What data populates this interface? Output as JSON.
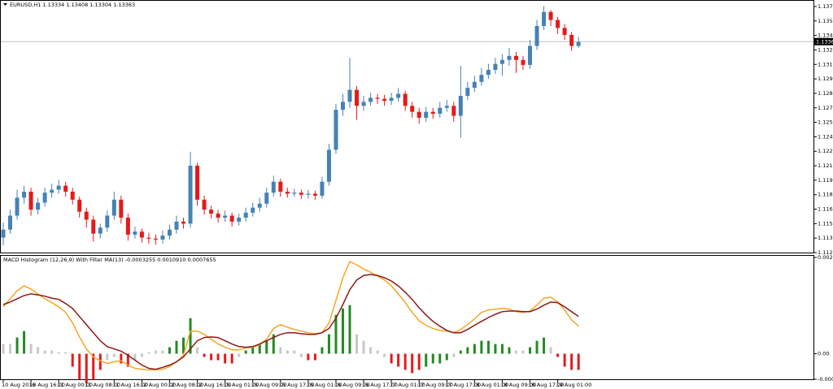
{
  "chart_data": [
    {
      "type": "candlestick",
      "title": "EURUSD,H1 1.13334 1.13408 1.13304 1.13363",
      "categories": [
        "10 Aug 2016",
        null,
        null,
        null,
        "10 Aug 16:00",
        null,
        null,
        null,
        "11 Aug 00:00",
        null,
        null,
        null,
        "11 Aug 08:00",
        null,
        null,
        null,
        "11 Aug 16:00",
        null,
        null,
        null,
        "12 Aug 00:00",
        null,
        null,
        null,
        "12 Aug 08:00",
        null,
        null,
        null,
        "12 Aug 16:00",
        null,
        null,
        null,
        "15 Aug 01:00",
        null,
        null,
        null,
        "15 Aug 09:00",
        null,
        null,
        null,
        "15 Aug 17:00",
        null,
        null,
        null,
        "16 Aug 01:00",
        null,
        null,
        null,
        "16 Aug 09:00",
        null,
        null,
        null,
        "16 Aug 17:00",
        null,
        null,
        null,
        "17 Aug 01:00",
        null,
        null,
        null,
        "17 Aug 09:00",
        null,
        null,
        null,
        "17 Aug 17:00",
        null,
        null,
        null,
        "18 Aug 01:00",
        null,
        null,
        null,
        "18 Aug 09:00",
        null,
        null,
        null,
        "18 Aug 17:00",
        null,
        null,
        null,
        "19 Aug 01:00",
        null,
        null,
        null
      ],
      "open": [
        1.114,
        1.1148,
        1.1162,
        1.118,
        1.1186,
        1.1168,
        1.1175,
        1.1185,
        1.1188,
        1.1192,
        1.1186,
        1.1178,
        1.1166,
        1.1158,
        1.1144,
        1.115,
        1.1162,
        1.1178,
        1.116,
        1.1143,
        1.1146,
        1.114,
        1.1139,
        1.1138,
        1.1142,
        1.1148,
        1.1156,
        1.1154,
        1.1212,
        1.1178,
        1.1168,
        1.1164,
        1.116,
        1.1162,
        1.1156,
        1.116,
        1.1165,
        1.117,
        1.1174,
        1.1185,
        1.1196,
        1.1186,
        1.1184,
        1.1185,
        1.1183,
        1.1184,
        1.1182,
        1.1196,
        1.1228,
        1.1268,
        1.1276,
        1.1288,
        1.1272,
        1.1276,
        1.128,
        1.1279,
        1.1277,
        1.128,
        1.1284,
        1.1272,
        1.1266,
        1.126,
        1.1266,
        1.1264,
        1.127,
        1.1272,
        1.1262,
        1.1282,
        1.129,
        1.1296,
        1.1303,
        1.1308,
        1.1314,
        1.1318,
        1.1322,
        1.1318,
        1.1313,
        1.1332,
        1.1352,
        1.1366,
        1.1358,
        1.135,
        1.1343,
        1.1332
      ],
      "high": [
        1.1155,
        1.1168,
        1.1188,
        1.1192,
        1.119,
        1.118,
        1.119,
        1.1194,
        1.1198,
        1.1196,
        1.119,
        1.1181,
        1.117,
        1.1162,
        1.1154,
        1.1167,
        1.1186,
        1.1182,
        1.1164,
        1.1151,
        1.1149,
        1.1145,
        1.1143,
        1.1147,
        1.1153,
        1.1162,
        1.116,
        1.1226,
        1.1215,
        1.1182,
        1.1172,
        1.1168,
        1.1167,
        1.1165,
        1.1164,
        1.117,
        1.1175,
        1.118,
        1.119,
        1.1202,
        1.1199,
        1.119,
        1.1189,
        1.1188,
        1.1188,
        1.1187,
        1.1201,
        1.1234,
        1.1274,
        1.1284,
        1.132,
        1.1292,
        1.1282,
        1.1285,
        1.1284,
        1.1283,
        1.1285,
        1.129,
        1.1287,
        1.1276,
        1.127,
        1.1271,
        1.127,
        1.1276,
        1.1278,
        1.1276,
        1.1312,
        1.1296,
        1.1302,
        1.131,
        1.1314,
        1.132,
        1.1324,
        1.133,
        1.1326,
        1.1322,
        1.1338,
        1.1358,
        1.1372,
        1.1368,
        1.1361,
        1.1354,
        1.1346,
        1.1341
      ],
      "low": [
        1.1132,
        1.1144,
        1.1158,
        1.1174,
        1.1162,
        1.1163,
        1.1171,
        1.118,
        1.1184,
        1.1181,
        1.1173,
        1.116,
        1.115,
        1.1136,
        1.1139,
        1.1146,
        1.1158,
        1.1154,
        1.1137,
        1.1139,
        1.1135,
        1.1134,
        1.1133,
        1.1134,
        1.1138,
        1.1144,
        1.1149,
        1.115,
        1.1172,
        1.1163,
        1.1159,
        1.1155,
        1.1156,
        1.1151,
        1.1152,
        1.1156,
        1.1161,
        1.1166,
        1.117,
        1.1181,
        1.1181,
        1.118,
        1.1181,
        1.1179,
        1.1179,
        1.1178,
        1.1179,
        1.1192,
        1.1224,
        1.1262,
        1.127,
        1.1258,
        1.1267,
        1.1272,
        1.1274,
        1.1272,
        1.1273,
        1.1276,
        1.1267,
        1.126,
        1.1254,
        1.1256,
        1.1259,
        1.126,
        1.1266,
        1.1256,
        1.124,
        1.1278,
        1.1286,
        1.1292,
        1.1299,
        1.1304,
        1.1302,
        1.1312,
        1.1305,
        1.1308,
        1.1309,
        1.1328,
        1.1348,
        1.1352,
        1.1344,
        1.1338,
        1.1327,
        1.133
      ],
      "close": [
        1.1148,
        1.1162,
        1.118,
        1.1186,
        1.1168,
        1.1175,
        1.1185,
        1.1188,
        1.1192,
        1.1186,
        1.1178,
        1.1166,
        1.1158,
        1.1144,
        1.115,
        1.1162,
        1.1178,
        1.116,
        1.1143,
        1.1146,
        1.114,
        1.1139,
        1.1138,
        1.1142,
        1.1148,
        1.1156,
        1.1154,
        1.1212,
        1.1178,
        1.1168,
        1.1164,
        1.116,
        1.1162,
        1.1156,
        1.116,
        1.1165,
        1.117,
        1.1174,
        1.1185,
        1.1196,
        1.1186,
        1.1184,
        1.1185,
        1.1183,
        1.1184,
        1.1182,
        1.1196,
        1.1228,
        1.1268,
        1.1276,
        1.1288,
        1.1272,
        1.1276,
        1.128,
        1.1279,
        1.1277,
        1.128,
        1.1284,
        1.1272,
        1.1266,
        1.126,
        1.1266,
        1.1264,
        1.127,
        1.1272,
        1.1262,
        1.1282,
        1.129,
        1.1296,
        1.1303,
        1.1308,
        1.1314,
        1.1318,
        1.1322,
        1.1318,
        1.1313,
        1.1332,
        1.1352,
        1.1366,
        1.1358,
        1.135,
        1.1343,
        1.1332,
        1.1336
      ],
      "up_color": "#4682b4",
      "down_color": "#e41a1c",
      "last_price": 1.13363,
      "ylim": [
        1.11242,
        1.1378
      ],
      "yticks": [
        1.13715,
        {
          "value": 1.1357,
          "label": "1.13570"
        },
        1.13425,
        {
          "value": 1.1328,
          "label": "1.13280"
        },
        1.13135,
        {
          "value": 1.1299,
          "label": "1.12990"
        },
        1.12845,
        {
          "value": 1.127,
          "label": "1.12700"
        },
        1.12555,
        {
          "value": 1.1241,
          "label": "1.12410"
        },
        1.12265,
        {
          "value": 1.1212,
          "label": "1.12120"
        },
        1.11975,
        {
          "value": 1.1183,
          "label": "1.11830"
        },
        1.11685,
        {
          "value": 1.1154,
          "label": "1.11540"
        },
        1.11395,
        {
          "value": 1.1125,
          "label": "1.11250"
        }
      ]
    },
    {
      "type": "macd",
      "title": "MACD Histogram (12,26,9) With Filter MA(13) -0.0003255 0.0010910 0.0007655",
      "values": [
        0.0003,
        0.0003,
        0.0005,
        0.0007,
        0.0003,
        0.0002,
        0.0001,
        0.0001,
        5e-05,
        5e-05,
        -0.0004,
        -0.0008,
        -0.0009,
        -0.0008,
        -0.0005,
        -0.0002,
        -0.0001,
        -0.0003,
        -0.0004,
        -0.0002,
        -0.0001,
        5e-05,
        0.0001,
        0.0001,
        0.0002,
        0.0004,
        0.0005,
        0.0011,
        0.0002,
        -0.0001,
        -0.0002,
        -0.0002,
        -0.0003,
        -0.0003,
        -0.0001,
        0.0001,
        0.0002,
        0.0003,
        0.0004,
        0.0006,
        0.0002,
        0.0001,
        0.0001,
        -0.0001,
        -0.0002,
        -0.0002,
        0.0002,
        0.0006,
        0.0012,
        0.0014,
        0.0015,
        0.0006,
        0.0004,
        0.0002,
        0.0001,
        -0.0001,
        -0.0003,
        -0.0004,
        -0.0005,
        -0.0006,
        -0.0005,
        -0.0004,
        -0.0003,
        -0.0003,
        -0.0002,
        -0.0001,
        0.0001,
        0.0002,
        0.0003,
        0.0004,
        0.0004,
        0.0003,
        0.0003,
        0.0002,
        0.0001,
        0.0001,
        0.0002,
        0.0004,
        0.0005,
        0.0002,
        -0.0001,
        -0.0004,
        -0.0005,
        -0.0005
      ],
      "colors": [
        "#c8c8c8",
        "#c8c8c8",
        "#228b22",
        "#228b22",
        "#c8c8c8",
        "#c8c8c8",
        "#c8c8c8",
        "#c8c8c8",
        "#c8c8c8",
        "#c8c8c8",
        "#e41a1c",
        "#e41a1c",
        "#e41a1c",
        "#e41a1c",
        "#e41a1c",
        "#c8c8c8",
        "#c8c8c8",
        "#e41a1c",
        "#e41a1c",
        "#c8c8c8",
        "#c8c8c8",
        "#c8c8c8",
        "#c8c8c8",
        "#c8c8c8",
        "#228b22",
        "#228b22",
        "#228b22",
        "#228b22",
        "#c8c8c8",
        "#e41a1c",
        "#e41a1c",
        "#e41a1c",
        "#e41a1c",
        "#e41a1c",
        "#c8c8c8",
        "#228b22",
        "#228b22",
        "#228b22",
        "#228b22",
        "#228b22",
        "#c8c8c8",
        "#c8c8c8",
        "#c8c8c8",
        "#c8c8c8",
        "#e41a1c",
        "#e41a1c",
        "#228b22",
        "#228b22",
        "#228b22",
        "#228b22",
        "#228b22",
        "#c8c8c8",
        "#c8c8c8",
        "#c8c8c8",
        "#c8c8c8",
        "#c8c8c8",
        "#e41a1c",
        "#e41a1c",
        "#e41a1c",
        "#e41a1c",
        "#e41a1c",
        "#228b22",
        "#228b22",
        "#228b22",
        "#228b22",
        "#c8c8c8",
        "#228b22",
        "#228b22",
        "#228b22",
        "#228b22",
        "#228b22",
        "#228b22",
        "#228b22",
        "#228b22",
        "#c8c8c8",
        "#c8c8c8",
        "#228b22",
        "#228b22",
        "#228b22",
        "#c8c8c8",
        "#e41a1c",
        "#e41a1c",
        "#e41a1c",
        "#e41a1c"
      ],
      "lines": [
        {
          "color": "#f5a623",
          "values": [
            0.00145,
            0.0017,
            0.00195,
            0.0021,
            0.002,
            0.00185,
            0.0017,
            0.00158,
            0.00145,
            0.00128,
            0.00095,
            0.00052,
            0.00015,
            -0.0001,
            -0.00022,
            -0.0003,
            -0.00025,
            -0.00022,
            -0.00035,
            -0.00045,
            -0.00048,
            -0.0005,
            -0.0005,
            -0.00048,
            -0.0004,
            -0.00025,
            -5e-05,
            0.0007,
            0.0007,
            0.0006,
            0.00045,
            0.0003,
            0.0002,
            0.00012,
            0.00012,
            0.00018,
            0.0002,
            0.00028,
            0.00045,
            0.00078,
            0.0009,
            0.00082,
            0.00075,
            0.0007,
            0.00065,
            0.00062,
            0.00065,
            0.00095,
            0.00165,
            0.00235,
            0.00285,
            0.00275,
            0.00262,
            0.00252,
            0.0024,
            0.00228,
            0.0021,
            0.00185,
            0.00158,
            0.00128,
            0.00102,
            0.00088,
            0.00078,
            0.00072,
            0.0007,
            0.00065,
            0.00075,
            0.0009,
            0.00108,
            0.00128,
            0.00135,
            0.00138,
            0.0014,
            0.00138,
            0.0013,
            0.00128,
            0.00132,
            0.0015,
            0.00172,
            0.00175,
            0.0016,
            0.00135,
            0.00105,
            0.00085
          ]
        },
        {
          "color": "#8b1a1a",
          "values": [
            0.00152,
            0.0016,
            0.0017,
            0.0018,
            0.00185,
            0.00182,
            0.00178,
            0.00172,
            0.00168,
            0.00155,
            0.0014,
            0.00115,
            0.0009,
            0.00065,
            0.0004,
            0.00022,
            0.00015,
            8e-05,
            -5e-05,
            -0.0002,
            -0.00035,
            -0.00045,
            -0.00048,
            -0.00042,
            -0.00035,
            -0.00025,
            -0.0001,
            0.00015,
            0.0004,
            0.0005,
            0.00052,
            0.0005,
            0.0004,
            0.0003,
            0.00022,
            0.0002,
            0.00022,
            0.0003,
            0.0004,
            0.0005,
            0.0006,
            0.00065,
            0.00065,
            0.00062,
            0.0006,
            0.0006,
            0.00065,
            0.00078,
            0.0011,
            0.00152,
            0.00198,
            0.00228,
            0.00242,
            0.00245,
            0.00242,
            0.00235,
            0.00225,
            0.0021,
            0.0019,
            0.00168,
            0.00142,
            0.0012,
            0.001,
            0.00085,
            0.00072,
            0.00065,
            0.00065,
            0.00075,
            0.00088,
            0.001,
            0.00112,
            0.00122,
            0.0013,
            0.00132,
            0.00132,
            0.0013,
            0.0013,
            0.00138,
            0.0015,
            0.0016,
            0.00158,
            0.00145,
            0.0013,
            0.00115
          ]
        }
      ],
      "ylim": [
        -0.00079,
        0.002978
      ],
      "yticks": [
        0.002978,
        {
          "value": 0,
          "label": "0.00"
        },
        -0.00079
      ]
    }
  ]
}
